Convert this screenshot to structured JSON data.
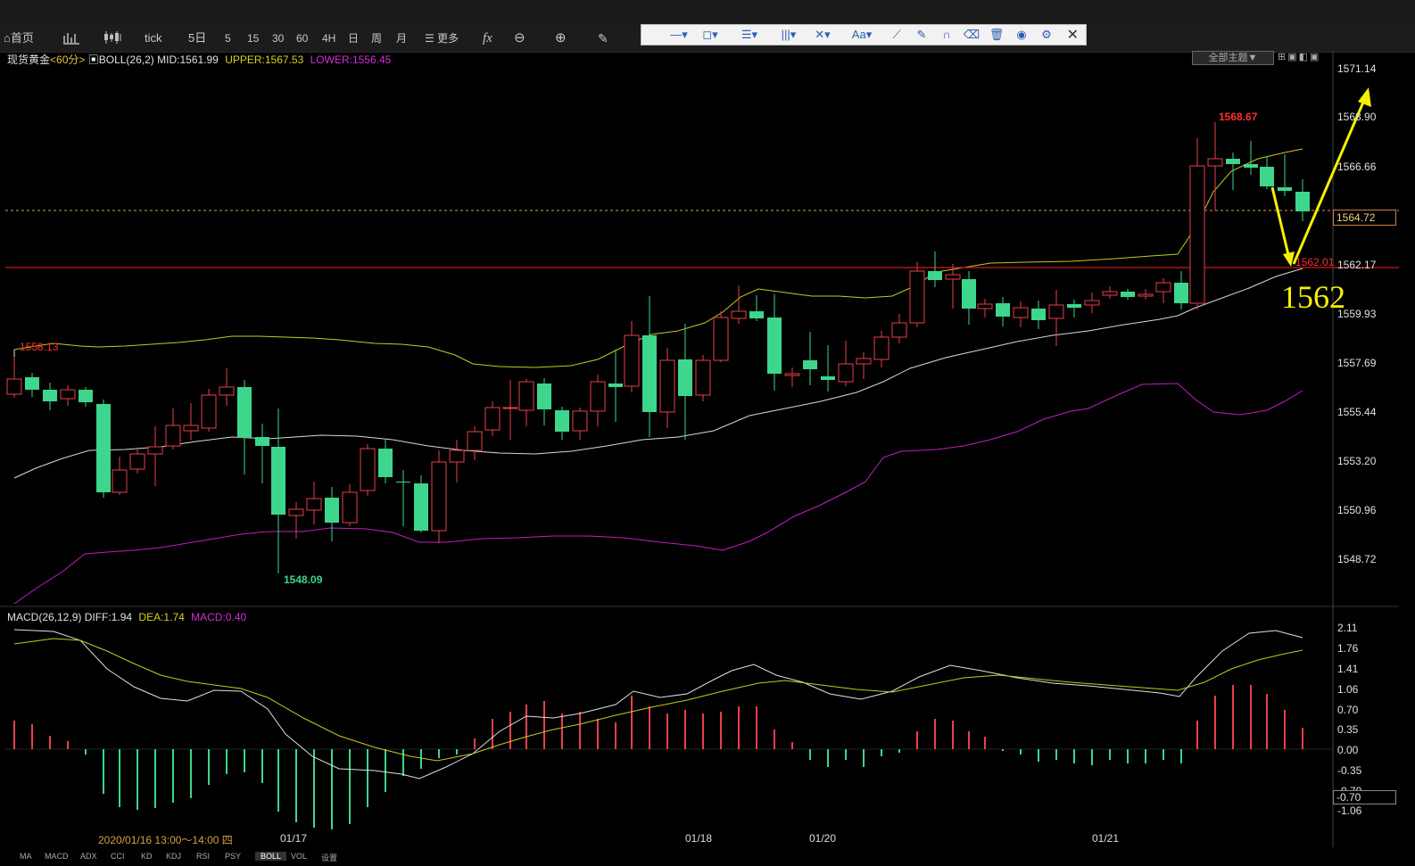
{
  "toolbar": {
    "home": "首页",
    "tick": "tick",
    "five_day": "5日",
    "p5": "5",
    "p15": "15",
    "p30": "30",
    "p60": "60",
    "p4h": "4H",
    "day": "日",
    "week": "周",
    "month": "月",
    "more": "更多",
    "fx": "fx"
  },
  "drawbar": {
    "text_tool": "Aa"
  },
  "theme": {
    "label": "全部主题▼"
  },
  "main_legend": {
    "symbol": "现货黄金",
    "period": "<60分>",
    "boll": "BOLL(26,2)",
    "mid": "MID:1561.99",
    "upper": "UPPER:1567.53",
    "lower": "LOWER:1556.45"
  },
  "macd_legend": {
    "name": "MACD(26,12,9)",
    "diff": "DIFF:1.94",
    "dea": "DEA:1.74",
    "macd": "MACD:0.40"
  },
  "price_axis": [
    "1571.14",
    "1568.90",
    "1566.66",
    "1562.17",
    "1559.93",
    "1557.69",
    "1555.44",
    "1553.20",
    "1550.96",
    "1548.72"
  ],
  "current_price": "1564.72",
  "level_line_label": "1562.01",
  "annotation": "1562",
  "high_label": "1568.67",
  "left_high_label": "1558.13",
  "low_label": "1548.09",
  "macd_axis": [
    "2.11",
    "1.76",
    "1.41",
    "1.06",
    "0.70",
    "0.35",
    "0.00",
    "-0.35",
    "-0.70",
    "-1.06"
  ],
  "macd_axis_current": "-0.70",
  "date_cursor": "2020/01/16 13:00～14:00 四",
  "dates": [
    "01/17",
    "01/18",
    "01/20",
    "01/21"
  ],
  "bottom_tabs": [
    "MA",
    "MACD",
    "ADX",
    "CCI",
    "KD",
    "KDJ",
    "RSI",
    "PSY",
    "BOLL",
    "VOL",
    "设置"
  ],
  "colors": {
    "up": "#e8404a",
    "down": "#3dd68c",
    "upper": "#c8c820",
    "mid": "#d8d8d8",
    "lower": "#c020c0",
    "arrow": "#f5f000",
    "level": "#d01818"
  }
}
